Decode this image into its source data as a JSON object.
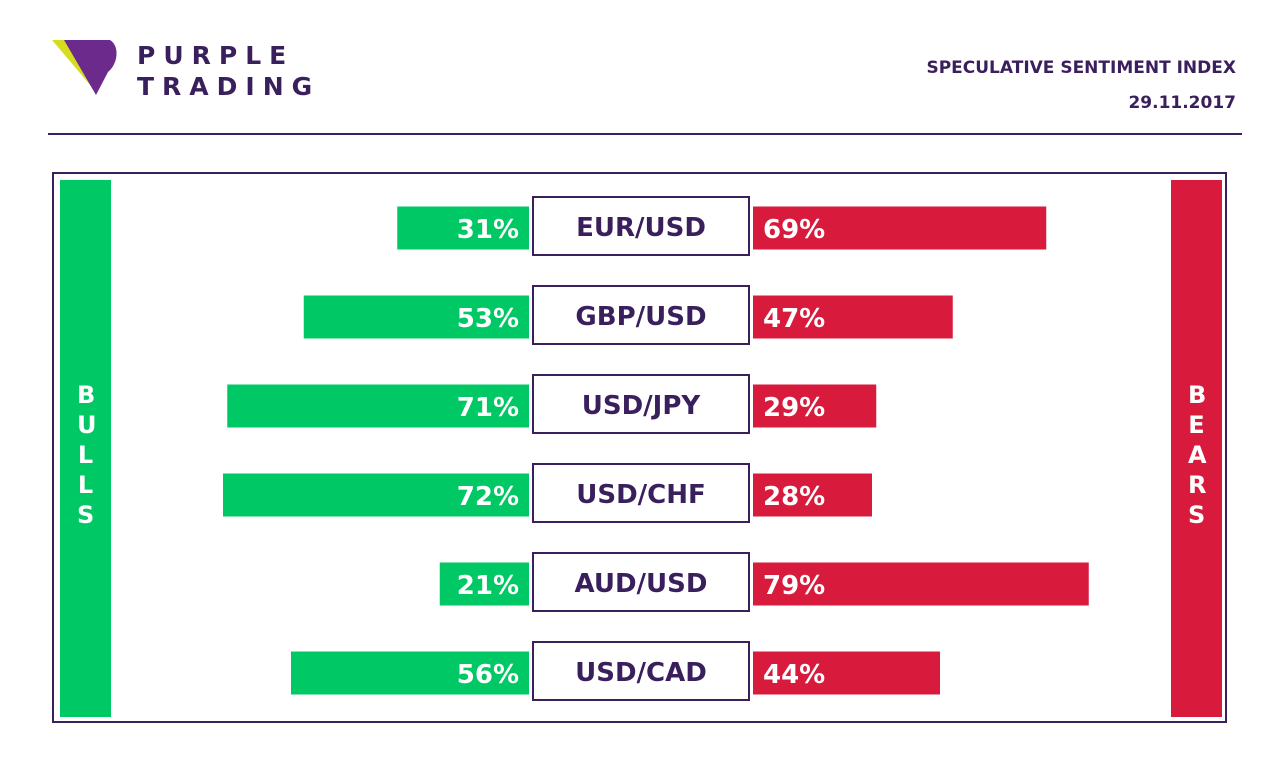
{
  "header": {
    "brand_line1": "PURPLE",
    "brand_line2": "TRADING",
    "title": "SPECULATIVE SENTIMENT INDEX",
    "date": "29.11.2017"
  },
  "colors": {
    "bull": "#00c864",
    "bear": "#d81b3d",
    "purple": "#3a1f5d",
    "logo_yellow": "#d4de1f",
    "logo_purple": "#6b2a8c"
  },
  "chart_data": {
    "type": "bar",
    "title": "SPECULATIVE SENTIMENT INDEX",
    "categories": [
      "EUR/USD",
      "GBP/USD",
      "USD/JPY",
      "USD/CHF",
      "AUD/USD",
      "USD/CAD"
    ],
    "series": [
      {
        "name": "BULLS",
        "values": [
          31,
          53,
          71,
          72,
          21,
          56
        ],
        "labels": [
          "31%",
          "53%",
          "71%",
          "72%",
          "21%",
          "56%"
        ]
      },
      {
        "name": "BEARS",
        "values": [
          69,
          47,
          29,
          28,
          79,
          44
        ],
        "labels": [
          "69%",
          "47%",
          "29%",
          "28%",
          "79%",
          "44%"
        ]
      }
    ],
    "xlim": [
      0,
      100
    ],
    "grid": false
  }
}
